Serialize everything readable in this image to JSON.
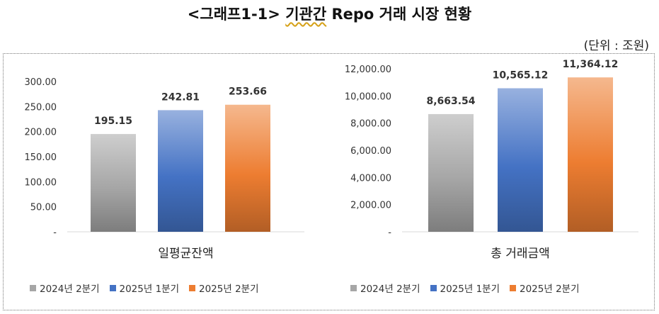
{
  "title": {
    "prefix": "<그래프1-1> ",
    "wavy": "기관간",
    "suffix": " Repo 거래 시장 현황"
  },
  "unit_label": "(단위 : 조원)",
  "colors": {
    "series1": "#a6a6a6",
    "series2": "#4472c4",
    "series3": "#ed7d31"
  },
  "chart_data": [
    {
      "type": "bar",
      "categories": [
        "일평균잔액"
      ],
      "series": [
        {
          "name": "2024년 2분기",
          "values": [
            195.15
          ],
          "labels": [
            "195.15"
          ]
        },
        {
          "name": "2025년 1분기",
          "values": [
            242.81
          ],
          "labels": [
            "242.81"
          ]
        },
        {
          "name": "2025년 2분기",
          "values": [
            253.66
          ],
          "labels": [
            "253.66"
          ]
        }
      ],
      "ylim": [
        0,
        300
      ],
      "yticks": [
        "-",
        "50.00",
        "100.00",
        "150.00",
        "200.00",
        "250.00",
        "300.00"
      ],
      "legend_position": "bottom"
    },
    {
      "type": "bar",
      "categories": [
        "총 거래금액"
      ],
      "series": [
        {
          "name": "2024년 2분기",
          "values": [
            8663.54
          ],
          "labels": [
            "8,663.54"
          ]
        },
        {
          "name": "2025년 1분기",
          "values": [
            10565.12
          ],
          "labels": [
            "10,565.12"
          ]
        },
        {
          "name": "2025년 2분기",
          "values": [
            11364.12
          ],
          "labels": [
            "11,364.12"
          ]
        }
      ],
      "ylim": [
        0,
        12000
      ],
      "yticks": [
        "-",
        "2,000.00",
        "4,000.00",
        "6,000.00",
        "8,000.00",
        "10,000.00",
        "12,000.00"
      ],
      "legend_position": "bottom"
    }
  ]
}
